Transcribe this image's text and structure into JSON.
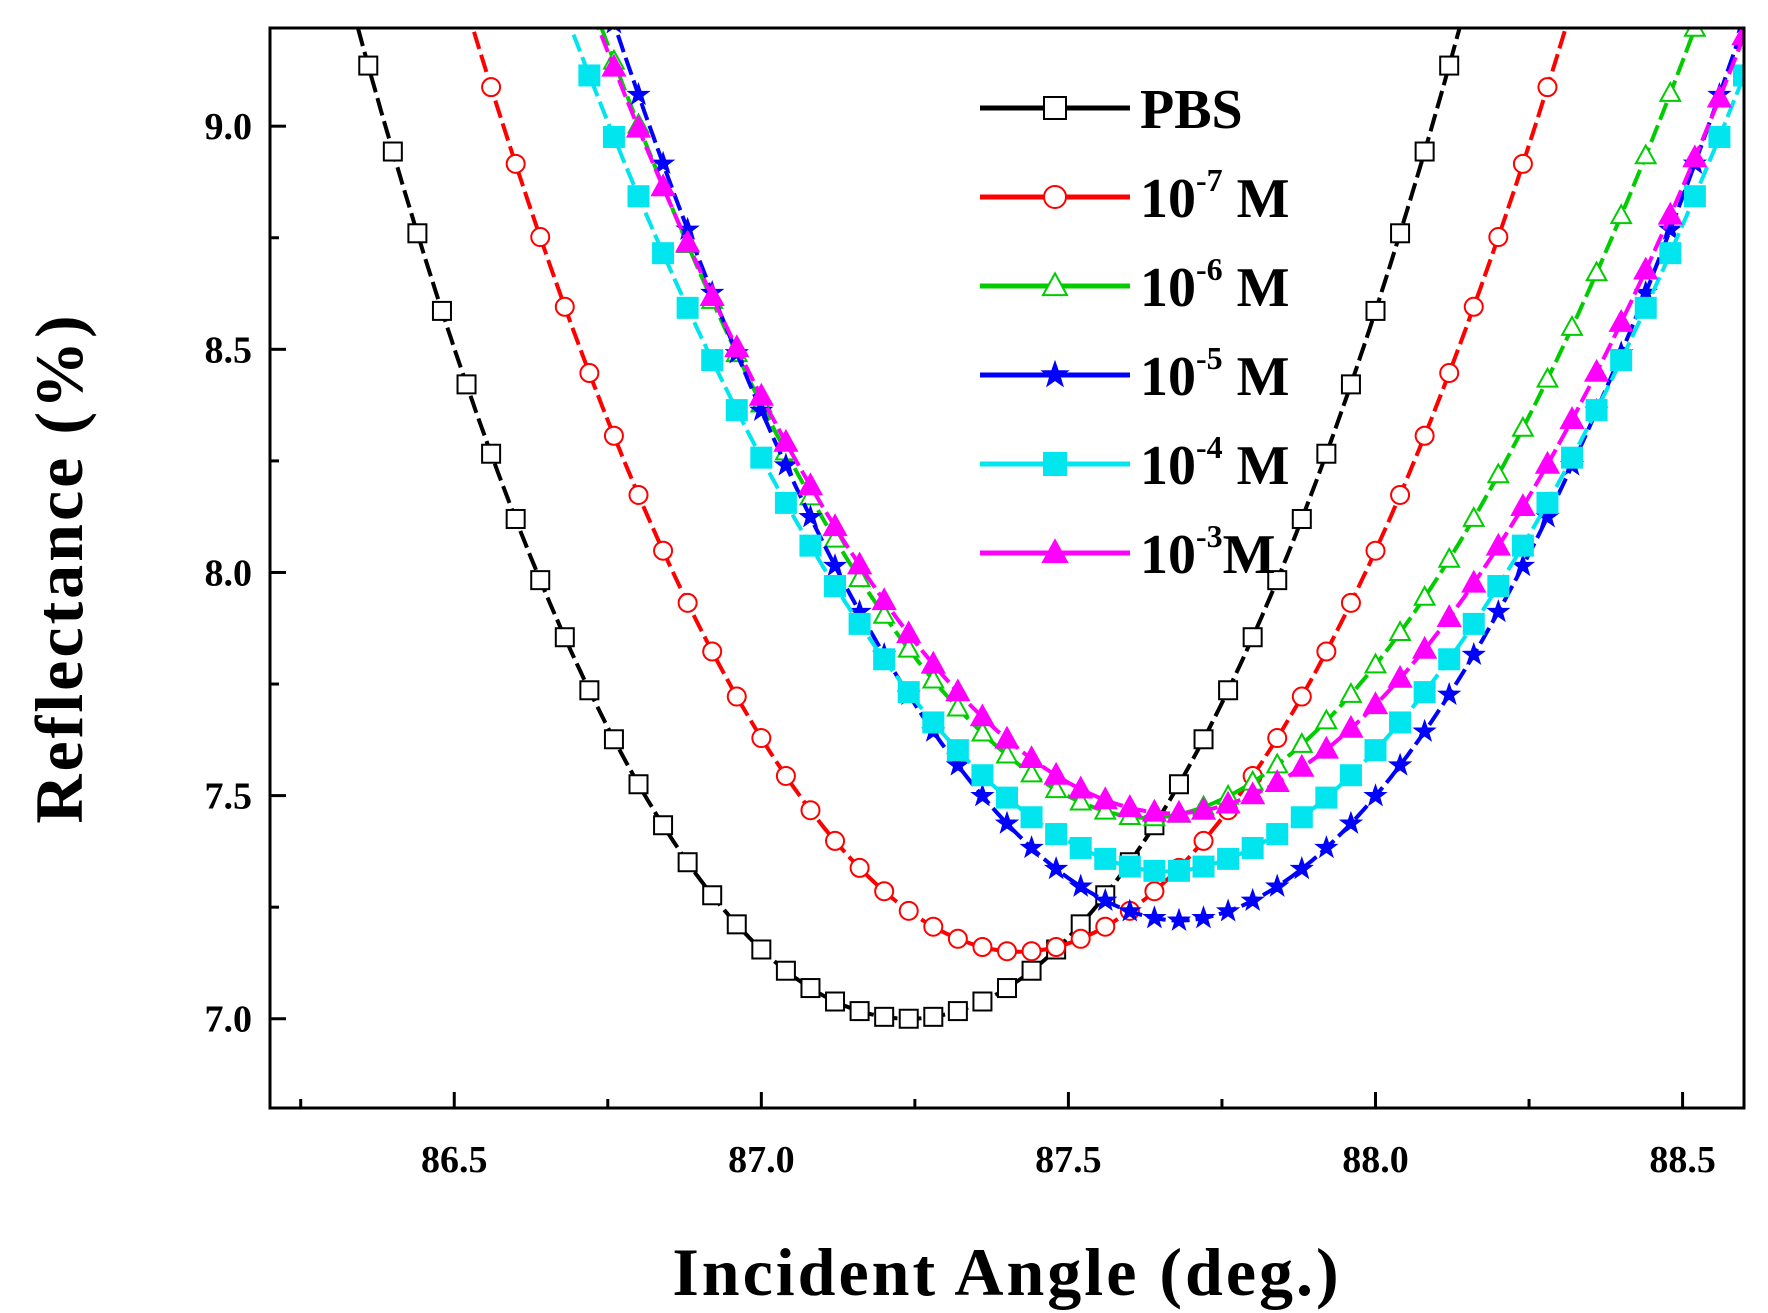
{
  "chart_data": {
    "type": "line",
    "title": "",
    "xlabel": "Incident Angle (deg.)",
    "ylabel": "Reflectance (%)",
    "xlim": [
      86.2,
      88.6
    ],
    "ylim": [
      6.8,
      9.22
    ],
    "xticks": [
      86.5,
      87.0,
      87.5,
      88.0,
      88.5
    ],
    "xtick_labels": [
      "86.5",
      "87.0",
      "87.5",
      "88.0",
      "88.5"
    ],
    "yticks": [
      7.0,
      7.5,
      8.0,
      8.5,
      9.0
    ],
    "ytick_labels": [
      "7.0",
      "7.5",
      "8.0",
      "8.5",
      "9.0"
    ],
    "grid": false,
    "legend_position": "top-center",
    "series": [
      {
        "name": "PBS",
        "base": "PBS",
        "sup": "",
        "unit": "",
        "color": "#000000",
        "marker": "square-open",
        "min_x": 87.24,
        "min_y": 7.0,
        "a": 2.67,
        "p": 2.0,
        "c": 0.1
      },
      {
        "name": "10-7 M",
        "base": "10",
        "sup": "-7",
        "unit": " M",
        "color": "#ff0000",
        "marker": "circle-open",
        "min_x": 87.42,
        "min_y": 7.15,
        "a": 2.6,
        "p": 1.95,
        "c": 0.0
      },
      {
        "name": "10-6 M",
        "base": "10",
        "sup": "-6",
        "unit": " M",
        "color": "#00cc00",
        "marker": "triangle-open",
        "min_x": 87.63,
        "min_y": 7.45,
        "a": 2.2,
        "p": 1.87,
        "c": 0.0
      },
      {
        "name": "10-5 M",
        "base": "10",
        "sup": "-5",
        "unit": " M",
        "color": "#0000ff",
        "marker": "star",
        "min_x": 87.68,
        "min_y": 7.22,
        "a": 2.35,
        "p": 1.87,
        "c": 0.0
      },
      {
        "name": "10-4 M",
        "base": "10",
        "sup": "-4",
        "unit": " M",
        "color": "#00e5ee",
        "marker": "square-filled",
        "min_x": 87.66,
        "min_y": 7.33,
        "a": 2.0,
        "p": 1.85,
        "c": 0.0
      },
      {
        "name": "10-3M",
        "base": "10",
        "sup": "-3",
        "unit": "M",
        "color": "#ff00ff",
        "marker": "triangle-filled",
        "min_x": 87.67,
        "min_y": 7.46,
        "a": 2.0,
        "p": 1.9,
        "c": 0.0
      }
    ]
  }
}
